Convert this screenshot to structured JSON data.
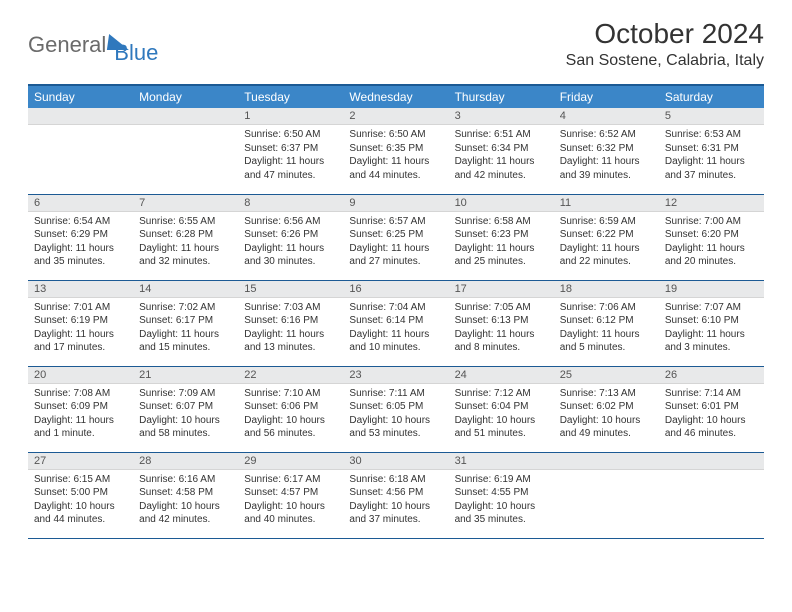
{
  "logo": {
    "text1": "General",
    "text2": "Blue"
  },
  "title": "October 2024",
  "location": "San Sostene, Calabria, Italy",
  "colors": {
    "header_bg": "#3b86c8",
    "header_border": "#1c5a94",
    "daynum_bg": "#e8e9ea",
    "text": "#333333",
    "logo_gray": "#6b6b6b",
    "logo_blue": "#2f78bd"
  },
  "weekdays": [
    "Sunday",
    "Monday",
    "Tuesday",
    "Wednesday",
    "Thursday",
    "Friday",
    "Saturday"
  ],
  "layout": {
    "first_weekday_index": 2,
    "days_in_month": 31
  },
  "days": {
    "1": {
      "sunrise": "Sunrise: 6:50 AM",
      "sunset": "Sunset: 6:37 PM",
      "daylight": "Daylight: 11 hours and 47 minutes."
    },
    "2": {
      "sunrise": "Sunrise: 6:50 AM",
      "sunset": "Sunset: 6:35 PM",
      "daylight": "Daylight: 11 hours and 44 minutes."
    },
    "3": {
      "sunrise": "Sunrise: 6:51 AM",
      "sunset": "Sunset: 6:34 PM",
      "daylight": "Daylight: 11 hours and 42 minutes."
    },
    "4": {
      "sunrise": "Sunrise: 6:52 AM",
      "sunset": "Sunset: 6:32 PM",
      "daylight": "Daylight: 11 hours and 39 minutes."
    },
    "5": {
      "sunrise": "Sunrise: 6:53 AM",
      "sunset": "Sunset: 6:31 PM",
      "daylight": "Daylight: 11 hours and 37 minutes."
    },
    "6": {
      "sunrise": "Sunrise: 6:54 AM",
      "sunset": "Sunset: 6:29 PM",
      "daylight": "Daylight: 11 hours and 35 minutes."
    },
    "7": {
      "sunrise": "Sunrise: 6:55 AM",
      "sunset": "Sunset: 6:28 PM",
      "daylight": "Daylight: 11 hours and 32 minutes."
    },
    "8": {
      "sunrise": "Sunrise: 6:56 AM",
      "sunset": "Sunset: 6:26 PM",
      "daylight": "Daylight: 11 hours and 30 minutes."
    },
    "9": {
      "sunrise": "Sunrise: 6:57 AM",
      "sunset": "Sunset: 6:25 PM",
      "daylight": "Daylight: 11 hours and 27 minutes."
    },
    "10": {
      "sunrise": "Sunrise: 6:58 AM",
      "sunset": "Sunset: 6:23 PM",
      "daylight": "Daylight: 11 hours and 25 minutes."
    },
    "11": {
      "sunrise": "Sunrise: 6:59 AM",
      "sunset": "Sunset: 6:22 PM",
      "daylight": "Daylight: 11 hours and 22 minutes."
    },
    "12": {
      "sunrise": "Sunrise: 7:00 AM",
      "sunset": "Sunset: 6:20 PM",
      "daylight": "Daylight: 11 hours and 20 minutes."
    },
    "13": {
      "sunrise": "Sunrise: 7:01 AM",
      "sunset": "Sunset: 6:19 PM",
      "daylight": "Daylight: 11 hours and 17 minutes."
    },
    "14": {
      "sunrise": "Sunrise: 7:02 AM",
      "sunset": "Sunset: 6:17 PM",
      "daylight": "Daylight: 11 hours and 15 minutes."
    },
    "15": {
      "sunrise": "Sunrise: 7:03 AM",
      "sunset": "Sunset: 6:16 PM",
      "daylight": "Daylight: 11 hours and 13 minutes."
    },
    "16": {
      "sunrise": "Sunrise: 7:04 AM",
      "sunset": "Sunset: 6:14 PM",
      "daylight": "Daylight: 11 hours and 10 minutes."
    },
    "17": {
      "sunrise": "Sunrise: 7:05 AM",
      "sunset": "Sunset: 6:13 PM",
      "daylight": "Daylight: 11 hours and 8 minutes."
    },
    "18": {
      "sunrise": "Sunrise: 7:06 AM",
      "sunset": "Sunset: 6:12 PM",
      "daylight": "Daylight: 11 hours and 5 minutes."
    },
    "19": {
      "sunrise": "Sunrise: 7:07 AM",
      "sunset": "Sunset: 6:10 PM",
      "daylight": "Daylight: 11 hours and 3 minutes."
    },
    "20": {
      "sunrise": "Sunrise: 7:08 AM",
      "sunset": "Sunset: 6:09 PM",
      "daylight": "Daylight: 11 hours and 1 minute."
    },
    "21": {
      "sunrise": "Sunrise: 7:09 AM",
      "sunset": "Sunset: 6:07 PM",
      "daylight": "Daylight: 10 hours and 58 minutes."
    },
    "22": {
      "sunrise": "Sunrise: 7:10 AM",
      "sunset": "Sunset: 6:06 PM",
      "daylight": "Daylight: 10 hours and 56 minutes."
    },
    "23": {
      "sunrise": "Sunrise: 7:11 AM",
      "sunset": "Sunset: 6:05 PM",
      "daylight": "Daylight: 10 hours and 53 minutes."
    },
    "24": {
      "sunrise": "Sunrise: 7:12 AM",
      "sunset": "Sunset: 6:04 PM",
      "daylight": "Daylight: 10 hours and 51 minutes."
    },
    "25": {
      "sunrise": "Sunrise: 7:13 AM",
      "sunset": "Sunset: 6:02 PM",
      "daylight": "Daylight: 10 hours and 49 minutes."
    },
    "26": {
      "sunrise": "Sunrise: 7:14 AM",
      "sunset": "Sunset: 6:01 PM",
      "daylight": "Daylight: 10 hours and 46 minutes."
    },
    "27": {
      "sunrise": "Sunrise: 6:15 AM",
      "sunset": "Sunset: 5:00 PM",
      "daylight": "Daylight: 10 hours and 44 minutes."
    },
    "28": {
      "sunrise": "Sunrise: 6:16 AM",
      "sunset": "Sunset: 4:58 PM",
      "daylight": "Daylight: 10 hours and 42 minutes."
    },
    "29": {
      "sunrise": "Sunrise: 6:17 AM",
      "sunset": "Sunset: 4:57 PM",
      "daylight": "Daylight: 10 hours and 40 minutes."
    },
    "30": {
      "sunrise": "Sunrise: 6:18 AM",
      "sunset": "Sunset: 4:56 PM",
      "daylight": "Daylight: 10 hours and 37 minutes."
    },
    "31": {
      "sunrise": "Sunrise: 6:19 AM",
      "sunset": "Sunset: 4:55 PM",
      "daylight": "Daylight: 10 hours and 35 minutes."
    }
  }
}
